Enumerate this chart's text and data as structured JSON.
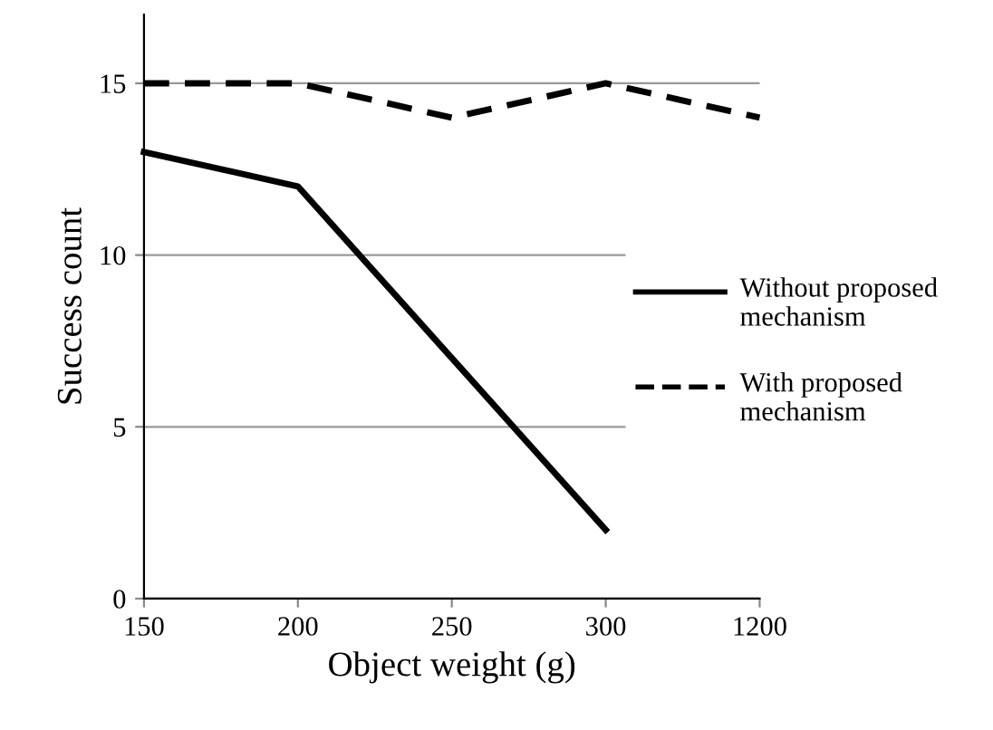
{
  "chart_data": {
    "type": "line",
    "xlabel": "Object weight (g)",
    "ylabel": "Success count",
    "categories": [
      "150",
      "200",
      "250",
      "300",
      "1200"
    ],
    "series": [
      {
        "name": "Without proposed mechanism",
        "color": "#000000",
        "line_style": "solid",
        "values": [
          13,
          12,
          7,
          2,
          null
        ]
      },
      {
        "name": "With proposed mechanism",
        "color": "#000000",
        "line_style": "dashed",
        "values": [
          15,
          15,
          14,
          15,
          14
        ]
      }
    ],
    "ylim": [
      0,
      17
    ],
    "yticks": [
      0,
      5,
      10,
      15
    ],
    "grid": "y",
    "legend": "right"
  }
}
